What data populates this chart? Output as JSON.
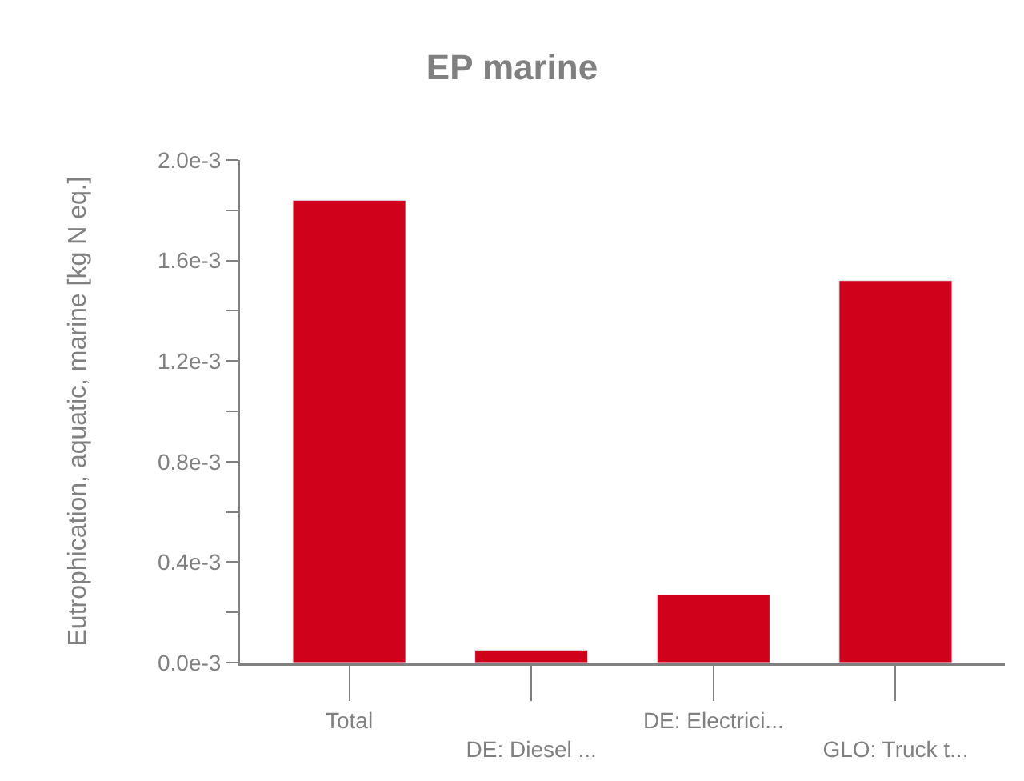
{
  "chart_data": {
    "type": "bar",
    "title": "EP marine",
    "ylabel": "Eutrophication, aquatic, marine [kg N eq.]",
    "categories": [
      "Total",
      "DE: Diesel ...",
      "DE: Electrici...",
      "GLO: Truck t..."
    ],
    "values": [
      0.00184,
      5e-05,
      0.00027,
      0.00152
    ],
    "color": "#d0021b",
    "ylim": [
      0,
      0.002
    ],
    "yticks": [
      {
        "value": 0,
        "label": "0.0e-3"
      },
      {
        "value": 0.0002,
        "label": null
      },
      {
        "value": 0.0004,
        "label": "0.4e-3"
      },
      {
        "value": 0.0006,
        "label": null
      },
      {
        "value": 0.0008,
        "label": "0.8e-3"
      },
      {
        "value": 0.001,
        "label": null
      },
      {
        "value": 0.0012,
        "label": "1.2e-3"
      },
      {
        "value": 0.0014,
        "label": null
      },
      {
        "value": 0.0016,
        "label": "1.6e-3"
      },
      {
        "value": 0.0018,
        "label": null
      },
      {
        "value": 0.002,
        "label": "2.0e-3"
      }
    ]
  }
}
